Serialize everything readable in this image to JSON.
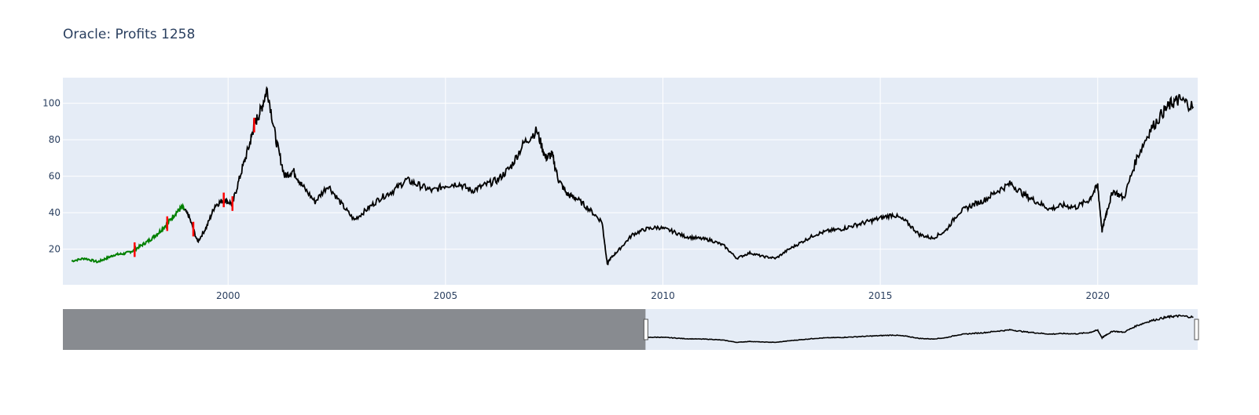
{
  "title": "Oracle: Profits 1258",
  "colors": {
    "plot_bg": "#e5ecf6",
    "grid": "#ffffff",
    "price_line": "#000000",
    "up": "#008000",
    "down": "#ff0000",
    "mask": "#888b90",
    "tick_text": "#2a3f5f"
  },
  "chart_data": {
    "type": "line",
    "title": "Oracle: Profits 1258",
    "xlabel": "",
    "ylabel": "",
    "x_range": [
      1996.2,
      2022.3
    ],
    "y_range": [
      0.5,
      114
    ],
    "x_ticks": [
      2000,
      2005,
      2010,
      2015,
      2020
    ],
    "x_tick_labels": [
      "2000",
      "2005",
      "2010",
      "2015",
      "2020"
    ],
    "y_ticks": [
      20,
      40,
      60,
      80,
      100
    ],
    "y_tick_labels": [
      "20",
      "40",
      "60",
      "80",
      "100"
    ],
    "grid": true,
    "series": [
      {
        "x": [
          1996.4,
          1996.7,
          1997.0,
          1997.2,
          1997.4,
          1997.6,
          1997.8,
          1998.0,
          1998.2,
          1998.4,
          1998.6,
          1998.8,
          1998.95,
          1999.1,
          1999.3,
          1999.5,
          1999.7,
          1999.9,
          2000.1,
          2000.3,
          2000.5,
          2000.6,
          2000.75,
          2000.9,
          2001.1,
          2001.3,
          2001.5,
          2001.7,
          2002.0,
          2002.3,
          2002.6,
          2002.9,
          2003.2,
          2003.5,
          2003.8,
          2004.1,
          2004.4,
          2004.7,
          2005.0,
          2005.3,
          2005.6,
          2005.9,
          2006.2,
          2006.5,
          2006.8,
          2007.1,
          2007.3,
          2007.45,
          2007.6,
          2007.8,
          2008.0,
          2008.3,
          2008.6,
          2008.72,
          2008.8,
          2009.0,
          2009.3,
          2009.6,
          2009.9,
          2010.2,
          2010.5,
          2010.8,
          2011.1,
          2011.4,
          2011.7,
          2012.0,
          2012.3,
          2012.6,
          2012.9,
          2013.2,
          2013.5,
          2013.8,
          2014.1,
          2014.4,
          2014.7,
          2015.0,
          2015.3,
          2015.6,
          2015.9,
          2016.2,
          2016.5,
          2016.8,
          2017.1,
          2017.4,
          2017.7,
          2018.0,
          2018.3,
          2018.6,
          2018.9,
          2019.2,
          2019.5,
          2019.8,
          2020.0,
          2020.1,
          2020.2,
          2020.35,
          2020.6,
          2020.9,
          2021.2,
          2021.5,
          2021.7,
          2021.9,
          2022.2
        ],
        "y": [
          13.5,
          15,
          13,
          15,
          17,
          17.5,
          19,
          22,
          25,
          29,
          34,
          40,
          43,
          38,
          24,
          32,
          44,
          47,
          45,
          62,
          78,
          88,
          96,
          108,
          80,
          60,
          63,
          55,
          46,
          55,
          45,
          36,
          42,
          48,
          52,
          58,
          55,
          52,
          55,
          56,
          52,
          55,
          58,
          65,
          78,
          85,
          70,
          72,
          58,
          50,
          48,
          42,
          35,
          12,
          15,
          20,
          28,
          31,
          32,
          30,
          27,
          26,
          25,
          22,
          15,
          18,
          16,
          15,
          20,
          24,
          28,
          30,
          31,
          33,
          35,
          37,
          39,
          35,
          28,
          26,
          30,
          40,
          44,
          47,
          52,
          56,
          50,
          46,
          42,
          44,
          43,
          47,
          55,
          30,
          40,
          52,
          48,
          70,
          85,
          95,
          100,
          102,
          98
        ]
      }
    ],
    "up_days_until": 1999.0,
    "down_spikes_x": [
      1997.85,
      1998.6,
      1999.2,
      1999.9,
      2000.1,
      2000.6
    ],
    "rangeslider": {
      "selected_range": [
        2009.6,
        2022.3
      ],
      "full_range": [
        1996.2,
        2022.3
      ]
    }
  }
}
